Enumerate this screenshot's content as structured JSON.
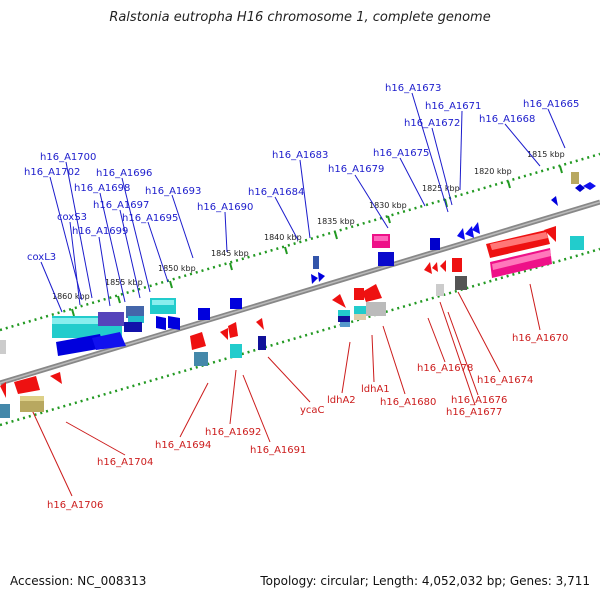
{
  "title": "Ralstonia eutropha H16 chromosome 1, complete genome",
  "footer": {
    "accession": "Accession: NC_008313",
    "summary": "Topology: circular; Length: 4,052,032 bp; Genes: 3,711"
  },
  "colors": {
    "top_label": "#1c1ccc",
    "bottom_label": "#cc1c1c",
    "axis": "#888888",
    "dots": "#229922"
  },
  "kbp_labels": [
    {
      "text": "1815 kbp",
      "kbp": 1815
    },
    {
      "text": "1820 kbp",
      "kbp": 1820
    },
    {
      "text": "1825 kbp",
      "kbp": 1825
    },
    {
      "text": "1830 kbp",
      "kbp": 1830
    },
    {
      "text": "1835 kbp",
      "kbp": 1835
    },
    {
      "text": "1840 kbp",
      "kbp": 1840
    },
    {
      "text": "1845 kbp",
      "kbp": 1845
    },
    {
      "text": "1850 kbp",
      "kbp": 1850
    },
    {
      "text": "1855 kbp",
      "kbp": 1855
    },
    {
      "text": "1860 kbp",
      "kbp": 1860
    }
  ],
  "top_genes": [
    "h16_A1665",
    "h16_A1668",
    "h16_A1671",
    "h16_A1672",
    "h16_A1673",
    "h16_A1675",
    "h16_A1679",
    "h16_A1683",
    "h16_A1684",
    "h16_A1690",
    "h16_A1693",
    "h16_A1695",
    "h16_A1696",
    "h16_A1697",
    "h16_A1698",
    "h16_A1699",
    "h16_A1700",
    "h16_A1702",
    "coxS3",
    "coxL3"
  ],
  "bottom_genes": [
    "h16_A1670",
    "h16_A1674",
    "h16_A1676",
    "h16_A1677",
    "h16_A1678",
    "h16_A1680",
    "ldhA1",
    "ldhA2",
    "ycaC",
    "h16_A1691",
    "h16_A1692",
    "h16_A1694",
    "h16_A1704",
    "h16_A1706"
  ]
}
